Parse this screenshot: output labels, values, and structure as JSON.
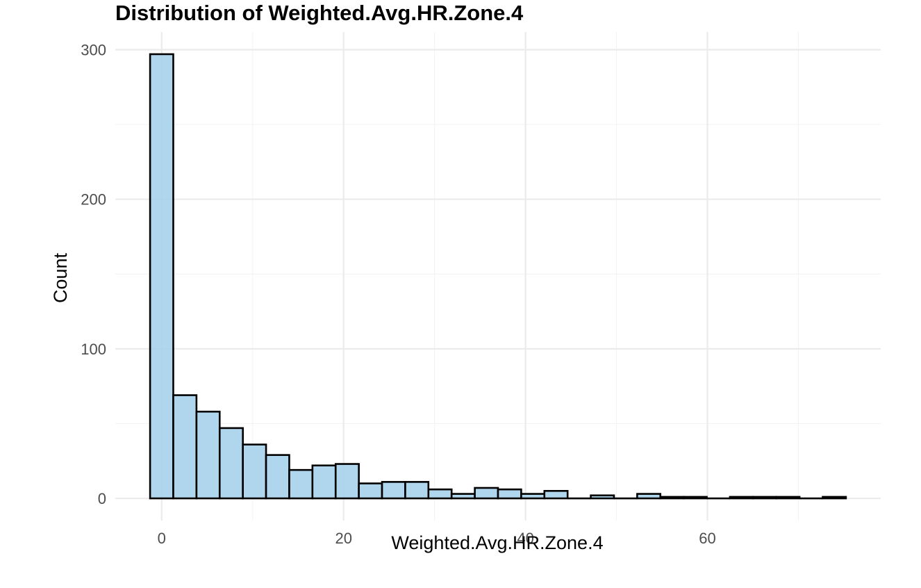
{
  "chart_data": {
    "type": "bar",
    "title": "Distribution of Weighted.Avg.HR.Zone.4",
    "xlabel": "Weighted.Avg.HR.Zone.4",
    "ylabel": "Count",
    "bin_width": 2.55,
    "bins": [
      {
        "x0": -1.275,
        "x1": 1.275,
        "count": 297
      },
      {
        "x0": 1.275,
        "x1": 3.825,
        "count": 69
      },
      {
        "x0": 3.825,
        "x1": 6.375,
        "count": 58
      },
      {
        "x0": 6.375,
        "x1": 8.925,
        "count": 47
      },
      {
        "x0": 8.925,
        "x1": 11.475,
        "count": 36
      },
      {
        "x0": 11.475,
        "x1": 14.025,
        "count": 29
      },
      {
        "x0": 14.025,
        "x1": 16.575,
        "count": 19
      },
      {
        "x0": 16.575,
        "x1": 19.125,
        "count": 22
      },
      {
        "x0": 19.125,
        "x1": 21.675,
        "count": 23
      },
      {
        "x0": 21.675,
        "x1": 24.225,
        "count": 10
      },
      {
        "x0": 24.225,
        "x1": 26.775,
        "count": 11
      },
      {
        "x0": 26.775,
        "x1": 29.325,
        "count": 11
      },
      {
        "x0": 29.325,
        "x1": 31.875,
        "count": 6
      },
      {
        "x0": 31.875,
        "x1": 34.425,
        "count": 3
      },
      {
        "x0": 34.425,
        "x1": 36.975,
        "count": 7
      },
      {
        "x0": 36.975,
        "x1": 39.525,
        "count": 6
      },
      {
        "x0": 39.525,
        "x1": 42.075,
        "count": 3
      },
      {
        "x0": 42.075,
        "x1": 44.625,
        "count": 5
      },
      {
        "x0": 44.625,
        "x1": 47.175,
        "count": 0
      },
      {
        "x0": 47.175,
        "x1": 49.725,
        "count": 2
      },
      {
        "x0": 49.725,
        "x1": 52.275,
        "count": 0
      },
      {
        "x0": 52.275,
        "x1": 54.825,
        "count": 3
      },
      {
        "x0": 54.825,
        "x1": 57.375,
        "count": 1
      },
      {
        "x0": 57.375,
        "x1": 59.925,
        "count": 1
      },
      {
        "x0": 59.925,
        "x1": 62.475,
        "count": 0
      },
      {
        "x0": 62.475,
        "x1": 65.025,
        "count": 1
      },
      {
        "x0": 65.025,
        "x1": 67.575,
        "count": 1
      },
      {
        "x0": 67.575,
        "x1": 70.125,
        "count": 1
      },
      {
        "x0": 70.125,
        "x1": 72.675,
        "count": 0
      },
      {
        "x0": 72.675,
        "x1": 75.225,
        "count": 1
      }
    ],
    "x_ticks": [
      0,
      20,
      40,
      60
    ],
    "y_ticks": [
      0,
      100,
      200,
      300
    ],
    "xlim": [
      -5.1,
      79.05
    ],
    "ylim": [
      -14.85,
      311.85
    ],
    "grid": true,
    "colors": {
      "bar_fill": "#a6d1eb",
      "bar_outline": "#000000",
      "grid": "#ebebeb",
      "background": "#ffffff"
    }
  }
}
